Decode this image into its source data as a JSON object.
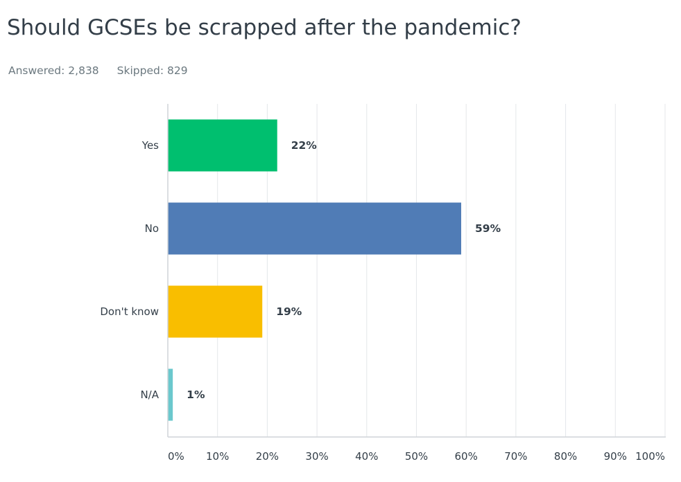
{
  "question": {
    "title": "Should GCSEs be scrapped after the pandemic?",
    "answered_label": "Answered:",
    "answered_value": "2,838",
    "skipped_label": "Skipped:",
    "skipped_value": "829"
  },
  "chart_data": {
    "type": "bar",
    "orientation": "horizontal",
    "title": "Should GCSEs be scrapped after the pandemic?",
    "categories": [
      "Yes",
      "No",
      "Don't know",
      "N/A"
    ],
    "values": [
      22,
      59,
      19,
      1
    ],
    "value_labels": [
      "22%",
      "59%",
      "19%",
      "1%"
    ],
    "colors": [
      "#00bf6f",
      "#507cb6",
      "#f9be00",
      "#6bc8cd"
    ],
    "xlim": [
      0,
      100
    ],
    "x_ticks": [
      "0%",
      "10%",
      "20%",
      "30%",
      "40%",
      "50%",
      "60%",
      "70%",
      "80%",
      "90%",
      "100%"
    ],
    "grid": true,
    "xlabel": "",
    "ylabel": ""
  }
}
